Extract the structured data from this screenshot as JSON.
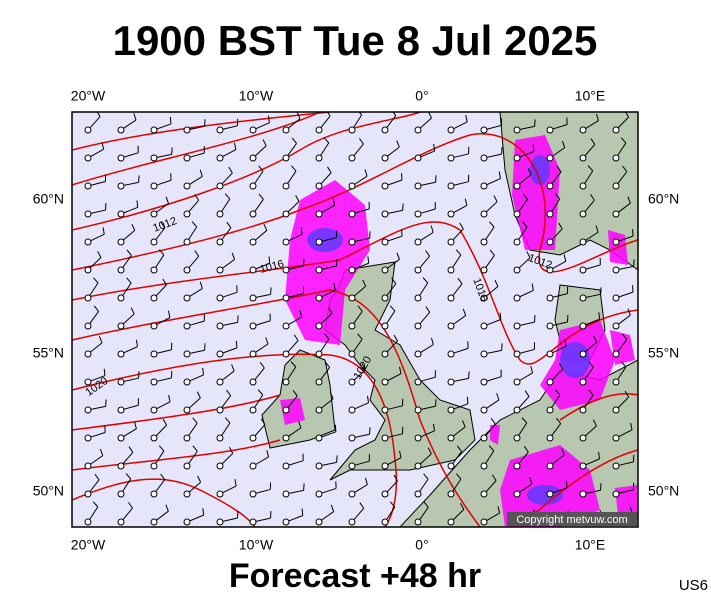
{
  "header": {
    "title": "1900 BST Tue 8 Jul 2025"
  },
  "axes": {
    "top": [
      "20°W",
      "10°W",
      "0°",
      "10°E"
    ],
    "bottom": [
      "20°W",
      "10°W",
      "0°",
      "10°E"
    ],
    "left": [
      "60°N",
      "55°N",
      "50°N"
    ],
    "right": [
      "60°N",
      "55°N",
      "50°N"
    ]
  },
  "isobar_labels": [
    "1012",
    "1016",
    "1016",
    "1012",
    "1020",
    "1020"
  ],
  "copyright": "Copyright metvuw.com",
  "footer": {
    "forecast": "Forecast +48 hr",
    "code": "US6"
  }
}
